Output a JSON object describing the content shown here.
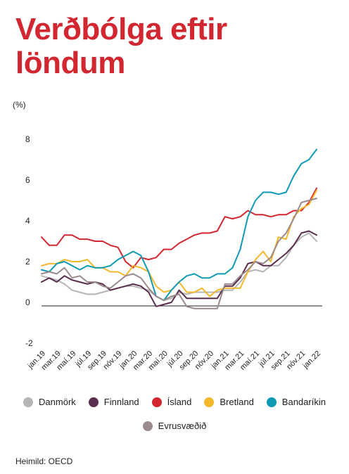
{
  "title": "Verðbólga eftir löndum",
  "source": "Heimild: OECD",
  "chart_data": {
    "type": "line",
    "ylabel": "(%)",
    "xlabel": "",
    "ylim": [
      -2,
      8
    ],
    "yticks": [
      -2,
      0,
      2,
      4,
      6,
      8
    ],
    "grid": false,
    "legend_position": "bottom",
    "x_dates": [
      "jan.19",
      "feb.19",
      "mar.19",
      "apr.19",
      "maí.19",
      "jún.19",
      "júl.19",
      "ágú.19",
      "sep.19",
      "okt.19",
      "nóv.19",
      "des.19",
      "jan.20",
      "feb.20",
      "mar.20",
      "apr.20",
      "maí.20",
      "jún.20",
      "júl.20",
      "ágú.20",
      "sep.20",
      "okt.20",
      "nóv.20",
      "des.20",
      "jan.21",
      "feb.21",
      "mar.21",
      "apr.21",
      "maí.21",
      "jún.21",
      "júl.21",
      "ágú.21",
      "sep.21",
      "okt.21",
      "nóv.21",
      "des.21",
      "jan.22"
    ],
    "x_tick_labels": [
      "jan.19",
      "mar.19",
      "maí.19",
      "júl.19",
      "sep.19",
      "nóv.19",
      "jan.20",
      "mar.20",
      "maí.20",
      "júl.20",
      "sep.20",
      "nóv.20",
      "jan.21",
      "mar.21",
      "maí.21",
      "júl.21",
      "sep.21",
      "nóv.21",
      "jan.22"
    ],
    "series": [
      {
        "name": "Danmörk",
        "color": "#b5b5b5",
        "values": [
          1.3,
          1.2,
          1.1,
          0.9,
          0.6,
          0.5,
          0.4,
          0.4,
          0.5,
          0.6,
          0.7,
          0.8,
          0.8,
          0.7,
          0.6,
          0.3,
          0.1,
          0.2,
          0.5,
          0.4,
          0.5,
          0.5,
          0.5,
          0.5,
          0.6,
          0.6,
          1.0,
          1.5,
          1.6,
          1.5,
          1.8,
          1.8,
          2.2,
          2.8,
          3.2,
          3.4,
          3.0
        ]
      },
      {
        "name": "Finnland",
        "color": "#5a2e4e",
        "values": [
          1.0,
          1.2,
          1.0,
          1.3,
          1.1,
          1.0,
          0.9,
          1.0,
          0.9,
          0.6,
          0.7,
          0.8,
          0.9,
          0.8,
          0.5,
          -0.2,
          -0.1,
          0.0,
          0.6,
          0.2,
          0.2,
          0.2,
          0.2,
          0.2,
          0.8,
          0.8,
          1.2,
          1.9,
          2.0,
          1.8,
          1.8,
          2.1,
          2.4,
          2.8,
          3.4,
          3.5,
          3.3
        ]
      },
      {
        "name": "Ísland",
        "color": "#d22630",
        "values": [
          3.2,
          2.8,
          2.8,
          3.3,
          3.3,
          3.1,
          3.1,
          3.0,
          3.0,
          2.8,
          2.7,
          2.0,
          1.7,
          2.2,
          2.1,
          2.2,
          2.6,
          2.6,
          2.9,
          3.1,
          3.3,
          3.4,
          3.4,
          3.5,
          4.2,
          4.1,
          4.2,
          4.5,
          4.3,
          4.3,
          4.2,
          4.3,
          4.3,
          4.5,
          4.5,
          4.9,
          5.6
        ]
      },
      {
        "name": "Bretland",
        "color": "#f3b82b",
        "values": [
          1.8,
          1.9,
          1.9,
          2.1,
          2.0,
          2.0,
          2.1,
          1.7,
          1.7,
          1.5,
          1.5,
          1.3,
          1.8,
          1.7,
          1.5,
          0.8,
          0.5,
          0.6,
          1.0,
          0.5,
          0.5,
          0.7,
          0.3,
          0.6,
          0.7,
          0.7,
          0.7,
          1.5,
          2.1,
          2.5,
          2.0,
          3.2,
          3.1,
          4.2,
          4.6,
          4.8,
          5.5
        ]
      },
      {
        "name": "Bandaríkin",
        "color": "#0e9ab4",
        "values": [
          1.6,
          1.5,
          1.9,
          2.0,
          1.8,
          1.6,
          1.8,
          1.7,
          1.7,
          1.8,
          2.1,
          2.3,
          2.5,
          2.3,
          1.5,
          0.3,
          0.1,
          0.6,
          1.0,
          1.3,
          1.4,
          1.2,
          1.2,
          1.4,
          1.4,
          1.7,
          2.6,
          4.2,
          5.0,
          5.4,
          5.4,
          5.3,
          5.4,
          6.2,
          6.8,
          7.0,
          7.5
        ]
      },
      {
        "name": "Evrusvæðið",
        "color": "#9a8a8c",
        "values": [
          1.4,
          1.5,
          1.4,
          1.7,
          1.2,
          1.3,
          1.0,
          1.0,
          0.8,
          0.7,
          1.0,
          1.3,
          1.4,
          1.2,
          0.7,
          0.3,
          0.1,
          0.3,
          0.4,
          -0.2,
          -0.3,
          -0.3,
          -0.3,
          -0.3,
          0.9,
          0.9,
          1.3,
          1.6,
          2.0,
          1.9,
          2.2,
          3.0,
          3.4,
          4.1,
          4.9,
          5.0,
          5.1
        ]
      }
    ]
  }
}
